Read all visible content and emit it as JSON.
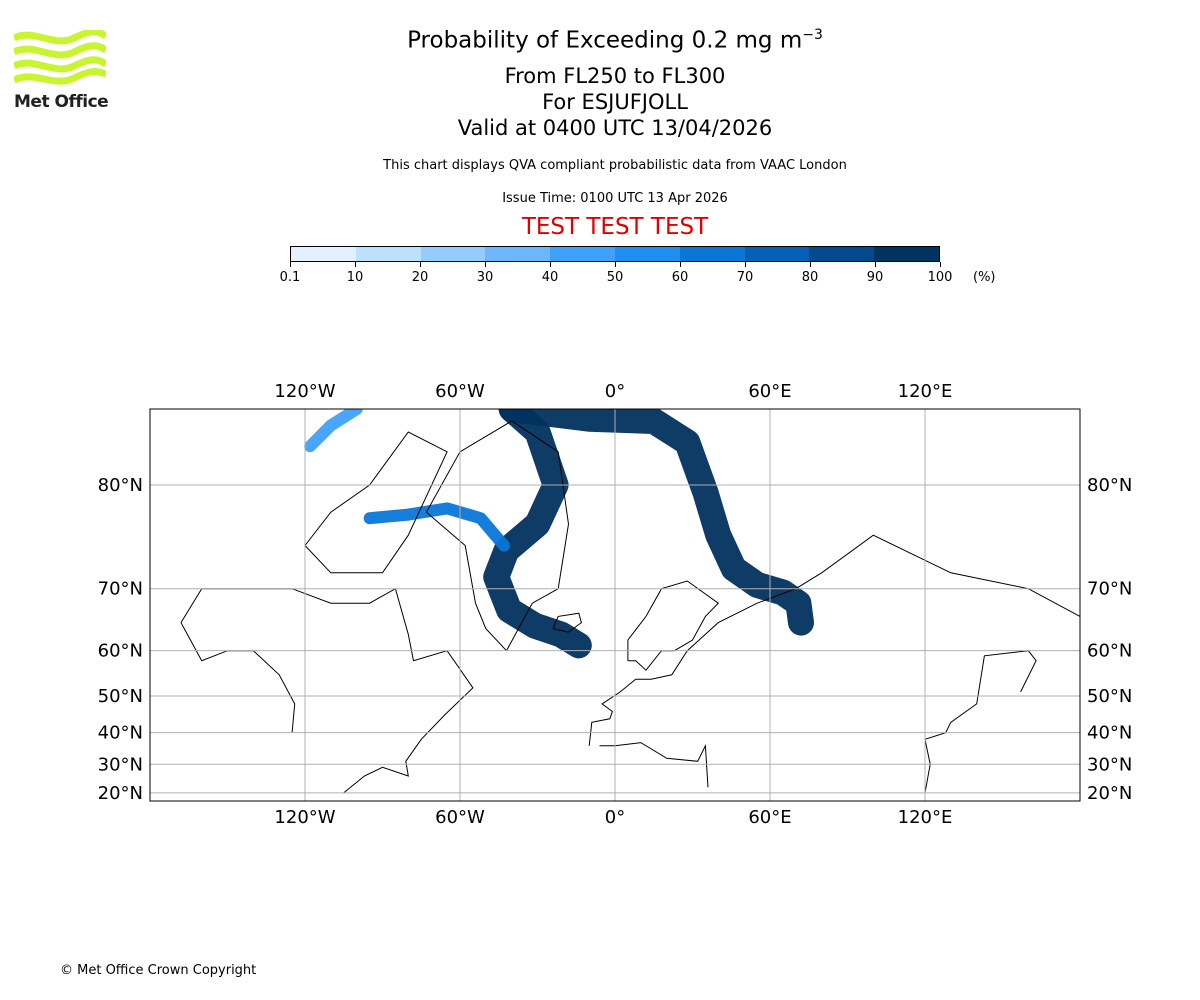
{
  "logo": {
    "text": "Met Office",
    "color": "#c8f530"
  },
  "header": {
    "title": "Probability of Exceeding 0.2 mg m",
    "title_sup": "−3",
    "line2": "From FL250 to FL300",
    "line3": "For ESJUFJOLL",
    "line4": "Valid at 0400 UTC 13/04/2026",
    "description": "This chart displays QVA compliant probabilistic data from VAAC London",
    "issue_time": "Issue Time: 0100 UTC 13 Apr 2026",
    "test_banner": "TEST TEST TEST",
    "test_color": "#e00000"
  },
  "footer": {
    "copyright": "© Met Office Crown Copyright"
  },
  "chart_data": {
    "type": "map",
    "projection": "mercator",
    "extent": {
      "lon": [
        -180,
        180
      ],
      "lat": [
        16.5,
        84
      ]
    },
    "colorbar": {
      "levels": [
        "0.1",
        "10",
        "20",
        "30",
        "40",
        "50",
        "60",
        "70",
        "80",
        "90",
        "100"
      ],
      "colors": [
        "#e3f1fd",
        "#bde0fd",
        "#96cbfd",
        "#6bb6fd",
        "#3ea2fd",
        "#1e8ef0",
        "#0b76d8",
        "#045fb6",
        "#03498c",
        "#02325f"
      ],
      "unit": "(%)"
    },
    "gridlines": {
      "lon": [
        -120,
        -60,
        0,
        60,
        120
      ],
      "lon_labels": [
        "120°W",
        "60°W",
        "0°",
        "60°E",
        "120°E"
      ],
      "lat": [
        20,
        30,
        40,
        50,
        60,
        70,
        80
      ],
      "lat_labels": [
        "20°N",
        "30°N",
        "40°N",
        "50°N",
        "60°N",
        "70°N",
        "80°N"
      ]
    },
    "plumes": [
      {
        "name": "greenland-branch",
        "probability": 95,
        "points": [
          [
            -40,
            84
          ],
          [
            -30,
            83
          ],
          [
            -23,
            80
          ],
          [
            -30,
            77
          ],
          [
            -42,
            74.5
          ],
          [
            -46,
            71.5
          ],
          [
            -41,
            67
          ],
          [
            -31,
            64.5
          ],
          [
            -21,
            63
          ],
          [
            -14,
            61
          ]
        ]
      },
      {
        "name": "arctic-arc",
        "probability": 95,
        "points": [
          [
            -40,
            84
          ],
          [
            -10,
            83.6
          ],
          [
            15,
            83.5
          ],
          [
            28,
            82.5
          ],
          [
            35,
            79.5
          ],
          [
            40,
            76
          ],
          [
            46,
            72.5
          ],
          [
            55,
            70.5
          ],
          [
            65,
            69.5
          ],
          [
            71,
            68
          ],
          [
            72,
            65
          ]
        ]
      },
      {
        "name": "baffin-branch",
        "probability": 60,
        "points": [
          [
            -95,
            77.5
          ],
          [
            -80,
            77.8
          ],
          [
            -65,
            78.3
          ],
          [
            -52,
            77.5
          ],
          [
            -43,
            75
          ]
        ]
      },
      {
        "name": "north-canada",
        "probability": 40,
        "points": [
          [
            -118,
            82.3
          ],
          [
            -110,
            83.3
          ],
          [
            -100,
            84
          ]
        ]
      }
    ]
  }
}
